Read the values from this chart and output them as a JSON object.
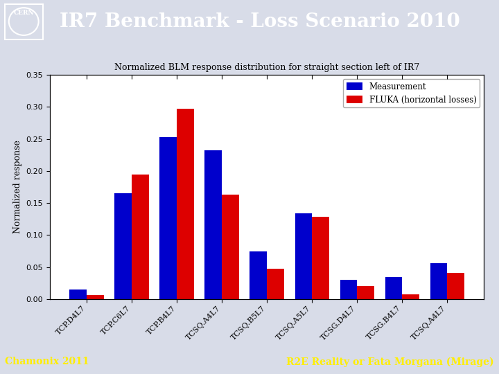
{
  "title": "Normalized BLM response distribution for straight section left of IR7",
  "ylabel": "Normalized response",
  "categories": [
    "TCP.D4L7",
    "TCP.C6L7",
    "TCP.B4L7",
    "TCSQ.A4L7",
    "TCSQ.B5L7",
    "TCSQ.A5L7",
    "TCSG.D4L7",
    "TCSG.B4L7",
    "TCSQ.A4L7"
  ],
  "measurement": [
    0.015,
    0.165,
    0.253,
    0.232,
    0.075,
    0.134,
    0.03,
    0.035,
    0.056
  ],
  "fluka": [
    0.007,
    0.194,
    0.297,
    0.163,
    0.047,
    0.129,
    0.02,
    0.008,
    0.041
  ],
  "blue_color": "#0000cc",
  "red_color": "#dd0000",
  "ylim": [
    0,
    0.35
  ],
  "legend_labels": [
    "Measurement",
    "FLUKA (horizontal losses)"
  ],
  "header_title": "IR7 Benchmark - Loss Scenario 2010",
  "header_bg": "#4a6fa0",
  "footer_bg": "#1a3a6a",
  "footer_left": "Chamonix 2011",
  "footer_right": "R2E Reality or Fata Morgana (Mirage)",
  "plot_bg": "#ffffff",
  "fig_bg": "#d8dce8"
}
